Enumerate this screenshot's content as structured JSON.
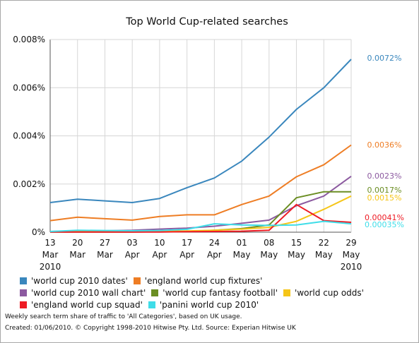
{
  "chart_data": {
    "type": "line",
    "title": "Top World Cup-related searches",
    "xlabel": "",
    "ylabel": "",
    "x": [
      "13 Mar 2010",
      "20 Mar",
      "27 Mar",
      "03 Apr",
      "10 Apr",
      "17 Apr",
      "24 Apr",
      "01 May",
      "08 May",
      "15 May",
      "22 May",
      "29 May 2010"
    ],
    "x_tick_lines": [
      [
        "13",
        "Mar",
        "2010"
      ],
      [
        "20",
        "Mar"
      ],
      [
        "27",
        "Mar"
      ],
      [
        "03",
        "Apr"
      ],
      [
        "10",
        "Apr"
      ],
      [
        "17",
        "Apr"
      ],
      [
        "24",
        "Apr"
      ],
      [
        "01",
        "May"
      ],
      [
        "08",
        "May"
      ],
      [
        "15",
        "May"
      ],
      [
        "22",
        "May"
      ],
      [
        "29",
        "May",
        "2010"
      ]
    ],
    "ylim": [
      0,
      0.008
    ],
    "y_ticks": [
      0,
      0.002,
      0.004,
      0.006,
      0.008
    ],
    "y_tick_labels": [
      "0%",
      "0.002%",
      "0.004%",
      "0.006%",
      "0.008%"
    ],
    "grid": true,
    "legend_position": "bottom",
    "series": [
      {
        "name": "'world cup 2010 dates'",
        "color": "#3a87bd",
        "end_label": "0.0072%",
        "values": [
          0.00123,
          0.00137,
          0.0013,
          0.00123,
          0.0014,
          0.00185,
          0.00225,
          0.00295,
          0.00395,
          0.0051,
          0.006,
          0.00718
        ]
      },
      {
        "name": "'england world cup fixtures'",
        "color": "#ee7d24",
        "end_label": "0.0036%",
        "values": [
          0.00048,
          0.00062,
          0.00056,
          0.0005,
          0.00065,
          0.00072,
          0.00072,
          0.00115,
          0.0015,
          0.0023,
          0.0028,
          0.00362
        ]
      },
      {
        "name": "'world cup 2010 wall chart'",
        "color": "#8c5aa0",
        "end_label": "0.0023%",
        "values": [
          3e-05,
          6e-05,
          6e-05,
          8e-05,
          0.00013,
          0.00017,
          0.00025,
          0.00037,
          0.0005,
          0.0011,
          0.0015,
          0.00232
        ]
      },
      {
        "name": "'world cup fantasy football'",
        "color": "#6b8e23",
        "end_label": "0.0017%",
        "values": [
          1e-05,
          1e-05,
          1e-05,
          1e-05,
          2e-05,
          3e-05,
          8e-05,
          0.00015,
          0.0003,
          0.00143,
          0.00168,
          0.00168
        ]
      },
      {
        "name": "'world cup odds'",
        "color": "#f5c518",
        "end_label": "0.0015%",
        "values": [
          2e-05,
          3e-05,
          3e-05,
          3e-05,
          4e-05,
          5e-05,
          8e-05,
          0.00013,
          0.0002,
          0.00045,
          0.00095,
          0.0015
        ]
      },
      {
        "name": "'england world cup squad'",
        "color": "#ee1b24",
        "end_label": "0.00041%",
        "values": [
          1e-05,
          1e-05,
          1e-05,
          1e-05,
          1e-05,
          2e-05,
          3e-05,
          4e-05,
          8e-05,
          0.00115,
          0.00048,
          0.00041
        ]
      },
      {
        "name": "'panini world cup 2010'",
        "color": "#3fdde8",
        "end_label": "0.00035%",
        "values": [
          3e-05,
          8e-05,
          7e-05,
          6e-05,
          7e-05,
          0.00012,
          0.00035,
          0.0003,
          0.00028,
          0.0003,
          0.00045,
          0.00035
        ]
      }
    ]
  },
  "legend_rows": [
    [
      0,
      1
    ],
    [
      2,
      3,
      4
    ],
    [
      5,
      6
    ]
  ],
  "footnote_1": "Weekly search term share of traffic to 'All Categories', based on UK usage.",
  "footnote_2": "Created: 01/06/2010. © Copyright 1998-2010 Hitwise Pty. Ltd.    Source: Experian Hitwise UK"
}
